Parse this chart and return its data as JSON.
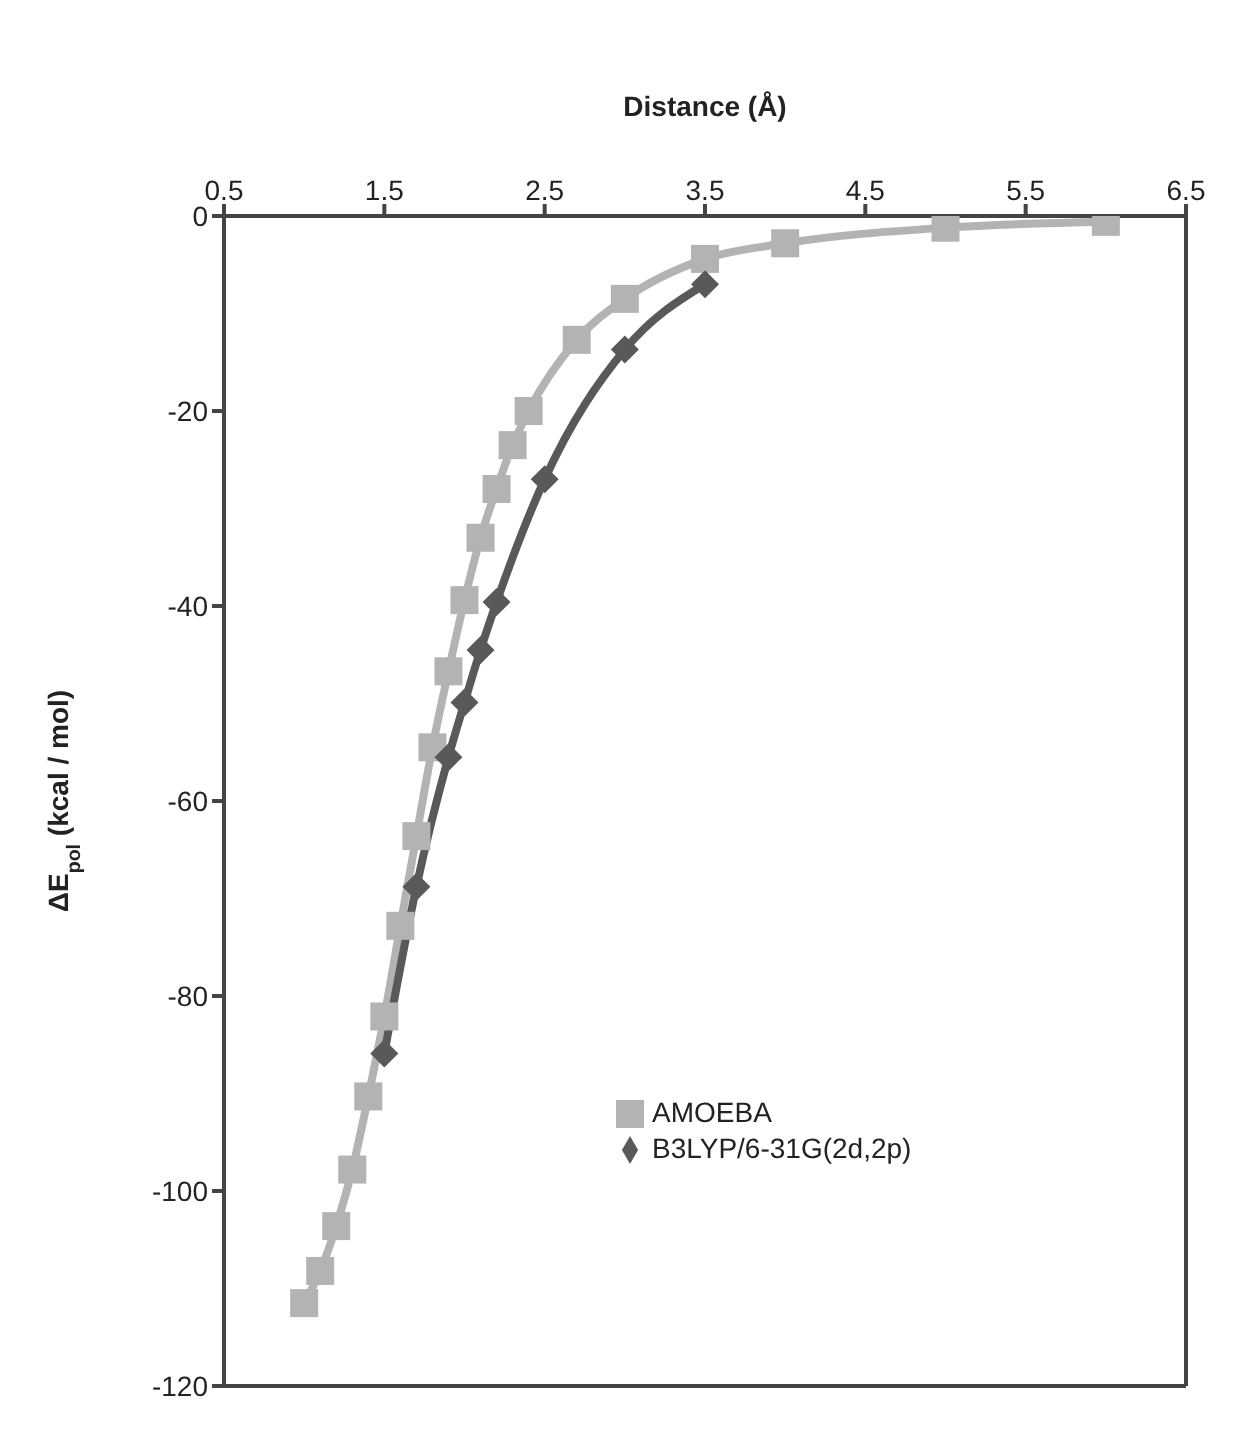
{
  "chart_data": {
    "type": "line",
    "xlabel": "Distance (Å)",
    "ylabel": "ΔE$_{pol}$ (kcal / mol)",
    "xlim": [
      0.5,
      6.5
    ],
    "xticks": [
      0.5,
      1.5,
      2.5,
      3.5,
      4.5,
      5.5,
      6.5
    ],
    "ylim": [
      -120,
      0
    ],
    "yticks": [
      -120,
      -100,
      -80,
      -60,
      -40,
      -20,
      0
    ],
    "grid": false,
    "legend": "right",
    "line_style": "solid",
    "series": [
      {
        "name": "AMOEBA",
        "color": "#b3b3b3",
        "marker": "square",
        "x": [
          1.0,
          1.1,
          1.2,
          1.3,
          1.4,
          1.5,
          1.6,
          1.7,
          1.8,
          1.9,
          2.0,
          2.1,
          2.2,
          2.3,
          2.4,
          2.7,
          3.0,
          3.5,
          4.0,
          5.0,
          6.0
        ],
        "values": [
          -111.5,
          -108.2,
          -103.6,
          -97.8,
          -90.3,
          -82.1,
          -72.8,
          -63.6,
          -54.5,
          -46.7,
          -39.4,
          -33,
          -28,
          -23.5,
          -20,
          -12.7,
          -8.5,
          -4.4,
          -2.8,
          -1.2,
          -0.6
        ]
      },
      {
        "name": "B3LYP/6-31G(2d,2p)",
        "color": "#595959",
        "marker": "diamond",
        "x": [
          1.5,
          1.7,
          1.9,
          2.0,
          2.1,
          2.2,
          2.5,
          3.0,
          3.5
        ],
        "values": [
          -85.9,
          -68.8,
          -55.5,
          -49.9,
          -44.5,
          -39.6,
          -27,
          -13.7,
          -7.0
        ]
      }
    ]
  }
}
